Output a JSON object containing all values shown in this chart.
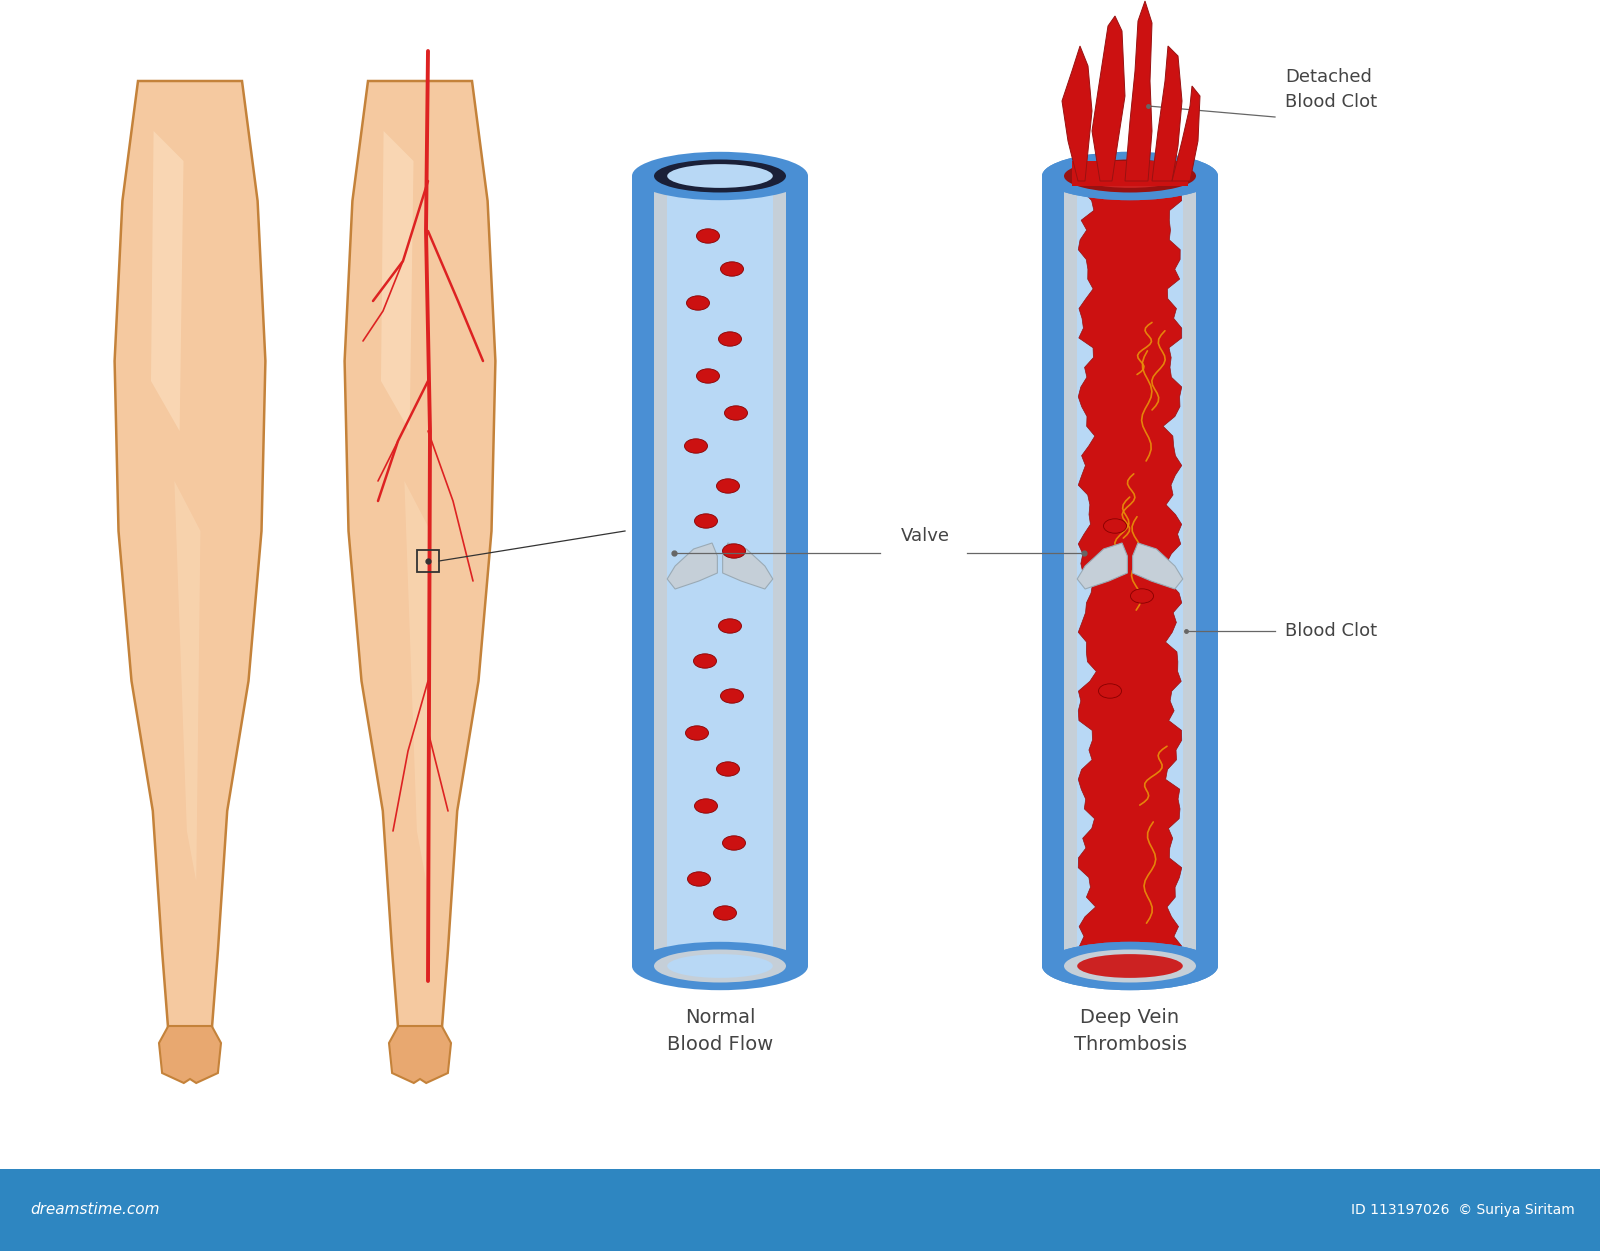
{
  "bg_color": "#ffffff",
  "skin_color": "#f5c9a0",
  "skin_light": "#fce0c0",
  "skin_shadow": "#e8a870",
  "skin_outline": "#c4823a",
  "vein_red": "#dd2222",
  "vein_bright": "#ff5555",
  "tube_blue_outer": "#4a8fd4",
  "tube_blue_mid": "#6baae0",
  "tube_blue_inner": "#b8d8f5",
  "tube_blue_light": "#d0e8ff",
  "tube_gray_lining": "#c5cfd8",
  "tube_wall_dark": "#3a7abf",
  "rbc_color": "#cc1111",
  "rbc_dark": "#880000",
  "clot_red": "#cc1111",
  "clot_red_dark": "#991111",
  "clot_orange": "#e8900a",
  "clot_bright": "#ee3333",
  "text_color": "#444444",
  "footer_color": "#2e86c1",
  "footer_text_left": "dreamstime.com",
  "footer_text_right": "ID 113197026  © Suriya Siritam",
  "label_valve": "Valve",
  "label_normal": "Normal\nBlood Flow",
  "label_dvt": "Deep Vein\nThrombosis",
  "label_detached": "Detached\nBlood Clot",
  "label_blood_clot": "Blood Clot"
}
